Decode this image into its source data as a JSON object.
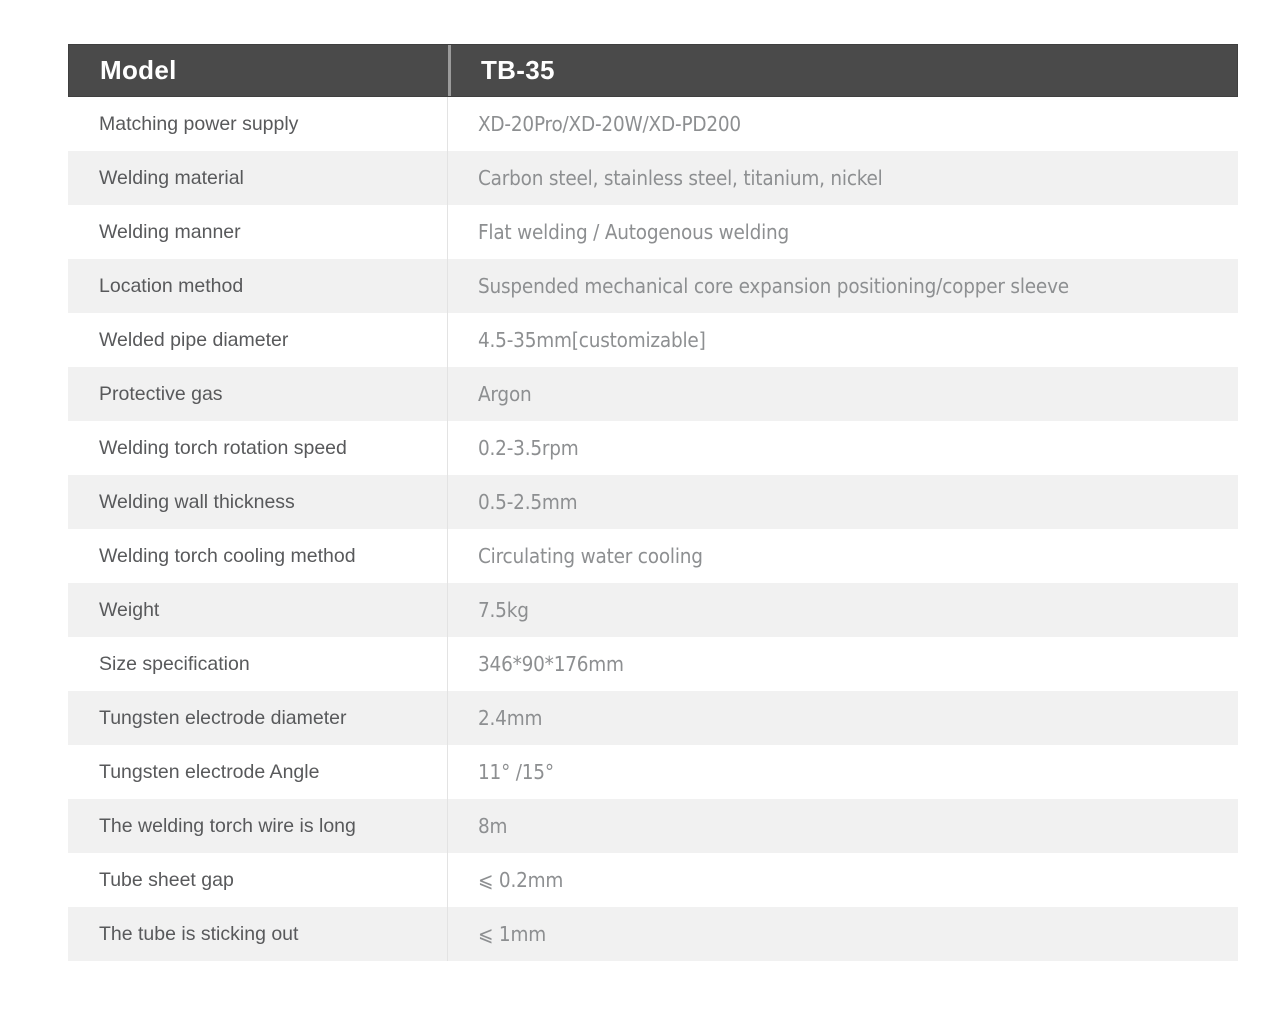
{
  "table": {
    "header": {
      "model_label": "Model",
      "model_value": "TB-35"
    },
    "rows": [
      {
        "label": "Matching power supply",
        "value": "XD-20Pro/XD-20W/XD-PD200"
      },
      {
        "label": "Welding material",
        "value": "Carbon steel, stainless steel, titanium, nickel"
      },
      {
        "label": "Welding manner",
        "value": "Flat welding / Autogenous welding"
      },
      {
        "label": "Location method",
        "value": "Suspended mechanical core expansion positioning/copper sleeve"
      },
      {
        "label": "Welded pipe diameter",
        "value": "4.5-35mm[customizable]"
      },
      {
        "label": "Protective gas",
        "value": "Argon"
      },
      {
        "label": "Welding torch rotation speed",
        "value": "0.2-3.5rpm"
      },
      {
        "label": "Welding wall thickness",
        "value": "0.5-2.5mm"
      },
      {
        "label": "Welding torch cooling method",
        "value": "Circulating water cooling"
      },
      {
        "label": "Weight",
        "value": "7.5kg"
      },
      {
        "label": "Size specification",
        "value": "346*90*176mm"
      },
      {
        "label": "Tungsten electrode diameter",
        "value": "2.4mm"
      },
      {
        "label": "Tungsten electrode Angle",
        "value": "11° /15°"
      },
      {
        "label": "The welding torch wire is long",
        "value": "8m"
      },
      {
        "label": "Tube sheet gap",
        "value": "⩽ 0.2mm"
      },
      {
        "label": "The tube is sticking out",
        "value": "⩽ 1mm"
      }
    ]
  },
  "colors": {
    "header_bg": "#4a4a4a",
    "header_text": "#ffffff",
    "header_divider": "#9b9b9b",
    "row_bg": "#ffffff",
    "row_alt_bg": "#f1f1f1",
    "col_divider": "#e3e3e3",
    "label_text": "#58595b",
    "value_text": "#8d8f91",
    "page_bg": "#ffffff"
  }
}
